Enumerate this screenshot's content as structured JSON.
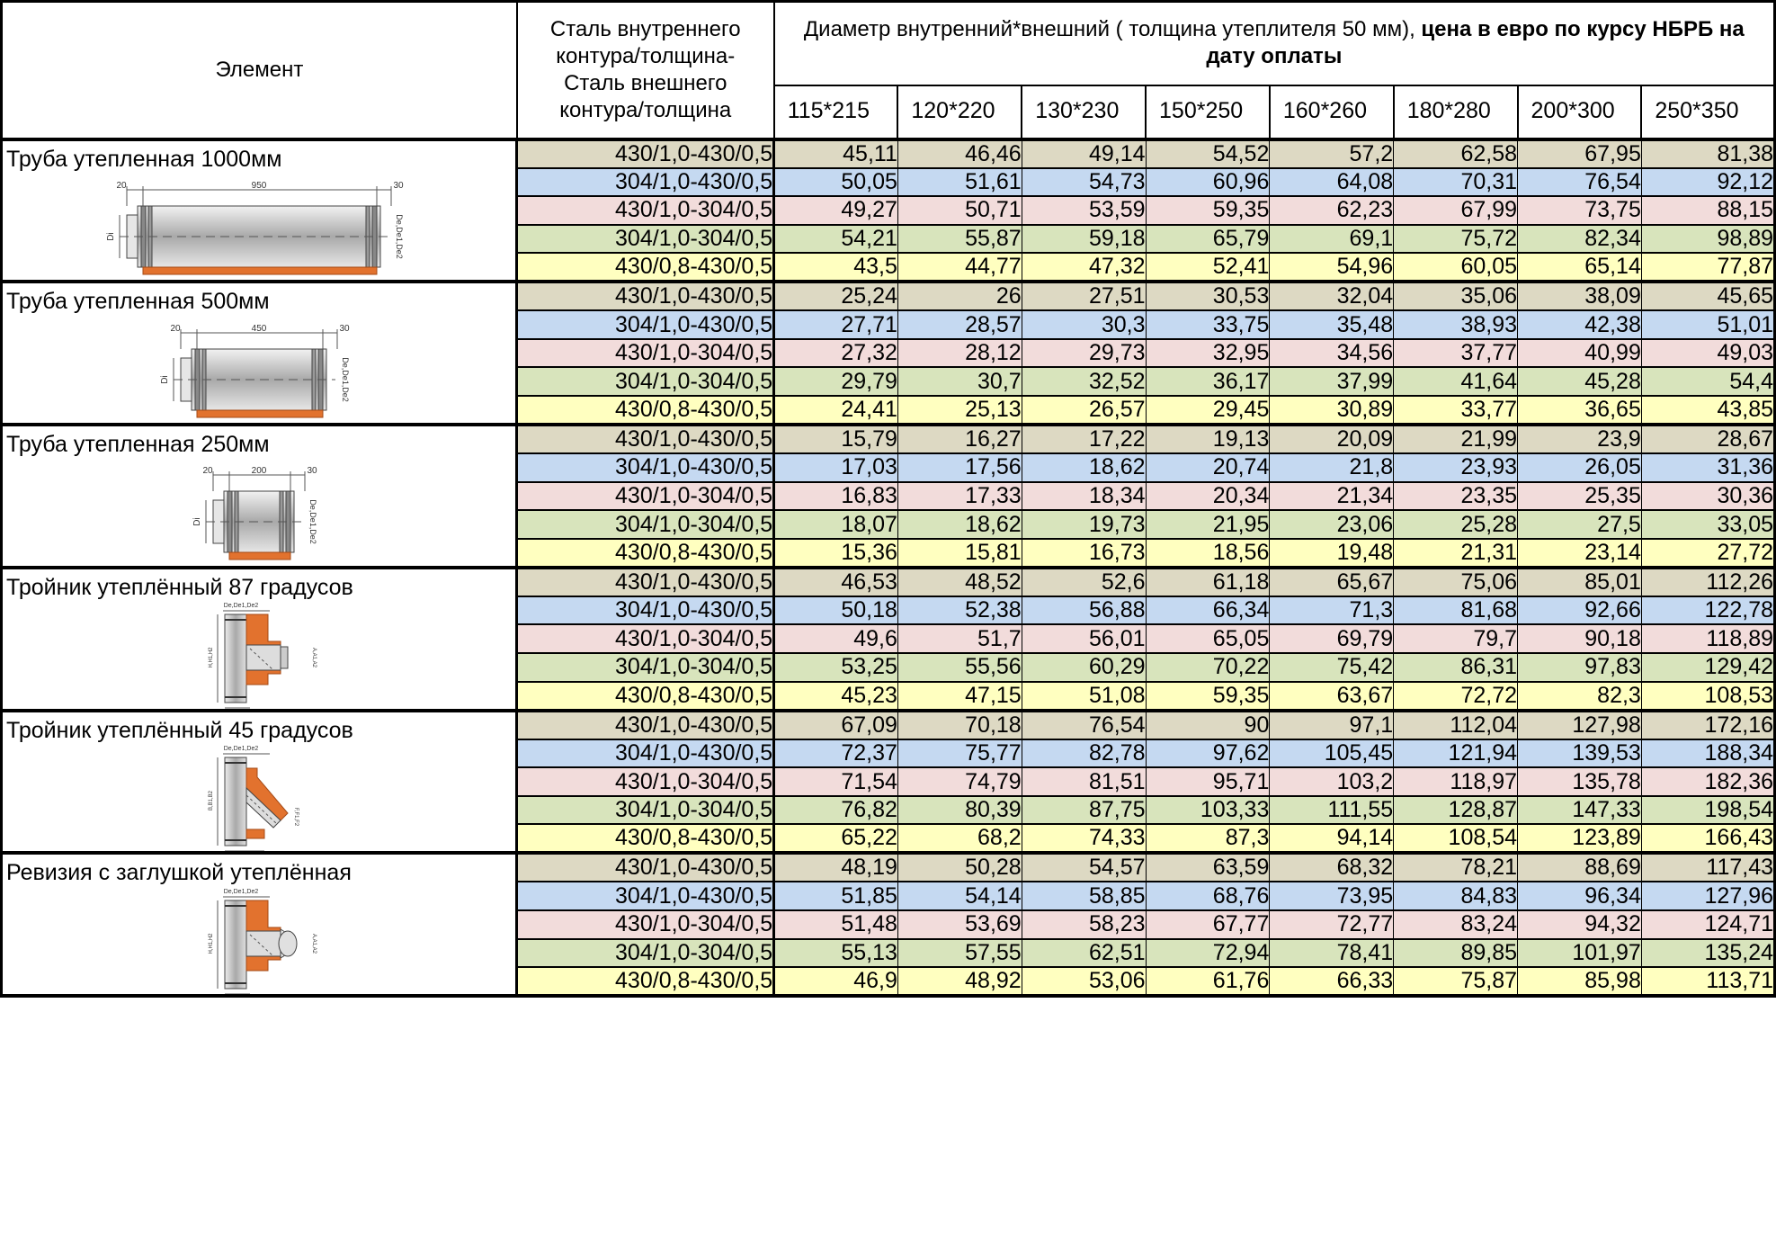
{
  "header": {
    "element": "Элемент",
    "steel": "Сталь внутреннего контура/толщина- Сталь внешнего контура/толщина",
    "diameter_normal": "Диаметр внутренний*внешний ( толщина утеплителя 50 мм), ",
    "diameter_bold": "цена в евро по курсу НБРБ на дату оплаты",
    "sizes": [
      "115*215",
      "120*220",
      "130*230",
      "150*250",
      "160*260",
      "180*280",
      "200*300",
      "250*350"
    ]
  },
  "colors": {
    "430/1,0-430/0,5": "#ddd9c3",
    "304/1,0-430/0,5": "#c5d9f1",
    "430/1,0-304/0,5": "#f2dcdb",
    "304/1,0-304/0,5": "#d8e4bc",
    "430/0,8-430/0,5": "#ffffc0",
    "insulation": "#e2722e"
  },
  "groups": [
    {
      "name": "Труба утепленная 1000мм",
      "icon": "pipe-1000-drawing",
      "drawing_labels": [
        "20",
        "950",
        "30",
        "Di",
        "De,De1,De2"
      ],
      "rows": [
        {
          "steel": "430/1,0-430/0,5",
          "values": [
            "45,11",
            "46,46",
            "49,14",
            "54,52",
            "57,2",
            "62,58",
            "67,95",
            "81,38"
          ]
        },
        {
          "steel": "304/1,0-430/0,5",
          "values": [
            "50,05",
            "51,61",
            "54,73",
            "60,96",
            "64,08",
            "70,31",
            "76,54",
            "92,12"
          ]
        },
        {
          "steel": "430/1,0-304/0,5",
          "values": [
            "49,27",
            "50,71",
            "53,59",
            "59,35",
            "62,23",
            "67,99",
            "73,75",
            "88,15"
          ]
        },
        {
          "steel": "304/1,0-304/0,5",
          "values": [
            "54,21",
            "55,87",
            "59,18",
            "65,79",
            "69,1",
            "75,72",
            "82,34",
            "98,89"
          ]
        },
        {
          "steel": "430/0,8-430/0,5",
          "values": [
            "43,5",
            "44,77",
            "47,32",
            "52,41",
            "54,96",
            "60,05",
            "65,14",
            "77,87"
          ]
        }
      ]
    },
    {
      "name": "Труба утепленная 500мм",
      "icon": "pipe-500-drawing",
      "drawing_labels": [
        "20",
        "450",
        "30",
        "Di",
        "De,De1,De2"
      ],
      "rows": [
        {
          "steel": "430/1,0-430/0,5",
          "values": [
            "25,24",
            "26",
            "27,51",
            "30,53",
            "32,04",
            "35,06",
            "38,09",
            "45,65"
          ]
        },
        {
          "steel": "304/1,0-430/0,5",
          "values": [
            "27,71",
            "28,57",
            "30,3",
            "33,75",
            "35,48",
            "38,93",
            "42,38",
            "51,01"
          ]
        },
        {
          "steel": "430/1,0-304/0,5",
          "values": [
            "27,32",
            "28,12",
            "29,73",
            "32,95",
            "34,56",
            "37,77",
            "40,99",
            "49,03"
          ]
        },
        {
          "steel": "304/1,0-304/0,5",
          "values": [
            "29,79",
            "30,7",
            "32,52",
            "36,17",
            "37,99",
            "41,64",
            "45,28",
            "54,4"
          ]
        },
        {
          "steel": "430/0,8-430/0,5",
          "values": [
            "24,41",
            "25,13",
            "26,57",
            "29,45",
            "30,89",
            "33,77",
            "36,65",
            "43,85"
          ]
        }
      ]
    },
    {
      "name": "Труба утепленная 250мм",
      "icon": "pipe-250-drawing",
      "drawing_labels": [
        "20",
        "200",
        "30",
        "Di",
        "De,De1,De2"
      ],
      "rows": [
        {
          "steel": "430/1,0-430/0,5",
          "values": [
            "15,79",
            "16,27",
            "17,22",
            "19,13",
            "20,09",
            "21,99",
            "23,9",
            "28,67"
          ]
        },
        {
          "steel": "304/1,0-430/0,5",
          "values": [
            "17,03",
            "17,56",
            "18,62",
            "20,74",
            "21,8",
            "23,93",
            "26,05",
            "31,36"
          ]
        },
        {
          "steel": "430/1,0-304/0,5",
          "values": [
            "16,83",
            "17,33",
            "18,34",
            "20,34",
            "21,34",
            "23,35",
            "25,35",
            "30,36"
          ]
        },
        {
          "steel": "304/1,0-304/0,5",
          "values": [
            "18,07",
            "18,62",
            "19,73",
            "21,95",
            "23,06",
            "25,28",
            "27,5",
            "33,05"
          ]
        },
        {
          "steel": "430/0,8-430/0,5",
          "values": [
            "15,36",
            "15,81",
            "16,73",
            "18,56",
            "19,48",
            "21,31",
            "23,14",
            "27,72"
          ]
        }
      ]
    },
    {
      "name": "Тройник утеплённый 87 градусов",
      "icon": "tee-87-drawing",
      "drawing_labels": [
        "De,De1,De2",
        "H,H1,H2",
        "A,A1,A2",
        "B,B1,B2",
        "20",
        "30"
      ],
      "rows": [
        {
          "steel": "430/1,0-430/0,5",
          "values": [
            "46,53",
            "48,52",
            "52,6",
            "61,18",
            "65,67",
            "75,06",
            "85,01",
            "112,26"
          ]
        },
        {
          "steel": "304/1,0-430/0,5",
          "values": [
            "50,18",
            "52,38",
            "56,88",
            "66,34",
            "71,3",
            "81,68",
            "92,66",
            "122,78"
          ]
        },
        {
          "steel": "430/1,0-304/0,5",
          "values": [
            "49,6",
            "51,7",
            "56,01",
            "65,05",
            "69,79",
            "79,7",
            "90,18",
            "118,89"
          ]
        },
        {
          "steel": "304/1,0-304/0,5",
          "values": [
            "53,25",
            "55,56",
            "60,29",
            "70,22",
            "75,42",
            "86,31",
            "97,83",
            "129,42"
          ]
        },
        {
          "steel": "430/0,8-430/0,5",
          "values": [
            "45,23",
            "47,15",
            "51,08",
            "59,35",
            "63,67",
            "72,72",
            "82,3",
            "108,53"
          ]
        }
      ]
    },
    {
      "name": "Тройник утеплённый 45 градусов",
      "icon": "tee-45-drawing",
      "drawing_labels": [
        "De,De1,De2",
        "B,B1,B2",
        "F,F1,F2",
        "20",
        "30"
      ],
      "rows": [
        {
          "steel": "430/1,0-430/0,5",
          "values": [
            "67,09",
            "70,18",
            "76,54",
            "90",
            "97,1",
            "112,04",
            "127,98",
            "172,16"
          ]
        },
        {
          "steel": "304/1,0-430/0,5",
          "values": [
            "72,37",
            "75,77",
            "82,78",
            "97,62",
            "105,45",
            "121,94",
            "139,53",
            "188,34"
          ]
        },
        {
          "steel": "430/1,0-304/0,5",
          "values": [
            "71,54",
            "74,79",
            "81,51",
            "95,71",
            "103,2",
            "118,97",
            "135,78",
            "182,36"
          ]
        },
        {
          "steel": "304/1,0-304/0,5",
          "values": [
            "76,82",
            "80,39",
            "87,75",
            "103,33",
            "111,55",
            "128,87",
            "147,33",
            "198,54"
          ]
        },
        {
          "steel": "430/0,8-430/0,5",
          "values": [
            "65,22",
            "68,2",
            "74,33",
            "87,3",
            "94,14",
            "108,54",
            "123,89",
            "166,43"
          ]
        }
      ]
    },
    {
      "name": "Ревизия с заглушкой утеплённая",
      "icon": "revision-drawing",
      "drawing_labels": [
        "De,De1,De2",
        "H,H1,H2",
        "A,A1,A2",
        "Di",
        "20",
        "30"
      ],
      "rows": [
        {
          "steel": "430/1,0-430/0,5",
          "values": [
            "48,19",
            "50,28",
            "54,57",
            "63,59",
            "68,32",
            "78,21",
            "88,69",
            "117,43"
          ]
        },
        {
          "steel": "304/1,0-430/0,5",
          "values": [
            "51,85",
            "54,14",
            "58,85",
            "68,76",
            "73,95",
            "84,83",
            "96,34",
            "127,96"
          ]
        },
        {
          "steel": "430/1,0-304/0,5",
          "values": [
            "51,48",
            "53,69",
            "58,23",
            "67,77",
            "72,77",
            "83,24",
            "94,32",
            "124,71"
          ]
        },
        {
          "steel": "304/1,0-304/0,5",
          "values": [
            "55,13",
            "57,55",
            "62,51",
            "72,94",
            "78,41",
            "89,85",
            "101,97",
            "135,24"
          ]
        },
        {
          "steel": "430/0,8-430/0,5",
          "values": [
            "46,9",
            "48,92",
            "53,06",
            "61,76",
            "66,33",
            "75,87",
            "85,98",
            "113,71"
          ]
        }
      ]
    }
  ]
}
